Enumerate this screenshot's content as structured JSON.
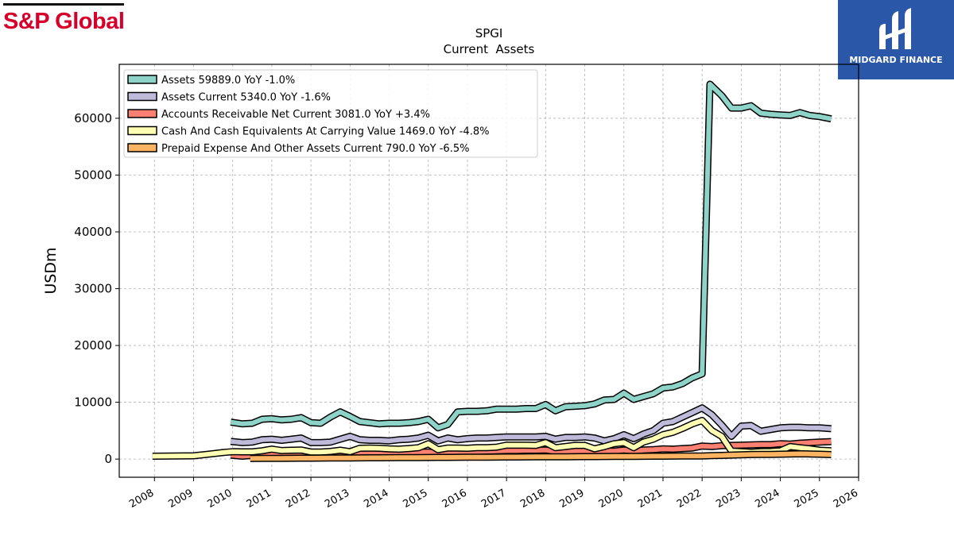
{
  "branding": {
    "left_logo_text": "S&P Global",
    "right_logo_text": "MIDGARD FINANCE",
    "right_logo_color": "#2b57a8",
    "left_logo_color": "#d6002a"
  },
  "chart_data": {
    "type": "line",
    "title": "SPGI",
    "subtitle": "Current  Assets",
    "xlabel": "",
    "ylabel": "USDm",
    "xlim": [
      2007.1,
      2026.0
    ],
    "ylim": [
      -3200,
      69500
    ],
    "x_ticks": [
      "2008",
      "2009",
      "2010",
      "2011",
      "2012",
      "2013",
      "2014",
      "2015",
      "2016",
      "2017",
      "2018",
      "2019",
      "2020",
      "2021",
      "2022",
      "2023",
      "2024",
      "2025",
      "2026"
    ],
    "y_ticks": [
      0,
      10000,
      20000,
      30000,
      40000,
      50000,
      60000
    ],
    "y_tick_labels": [
      "0",
      "10000",
      "20000",
      "30000",
      "40000",
      "50000",
      "60000"
    ],
    "grid": true,
    "legend_position": "top-left",
    "series": [
      {
        "name": "Assets  59889.0 YoY -1.0%",
        "color": "#8dd3c7",
        "x": [
          2009.95,
          2010.25,
          2010.5,
          2010.75,
          2011.0,
          2011.25,
          2011.5,
          2011.75,
          2012.0,
          2012.25,
          2012.5,
          2012.75,
          2013.0,
          2013.25,
          2013.5,
          2013.75,
          2014.0,
          2014.25,
          2014.5,
          2014.75,
          2015.0,
          2015.25,
          2015.5,
          2015.75,
          2016.0,
          2016.25,
          2016.5,
          2016.75,
          2017.0,
          2017.25,
          2017.5,
          2017.75,
          2018.0,
          2018.25,
          2018.5,
          2018.75,
          2019.0,
          2019.25,
          2019.5,
          2019.75,
          2020.0,
          2020.25,
          2020.5,
          2020.75,
          2021.0,
          2021.25,
          2021.5,
          2021.75,
          2022.0,
          2022.2,
          2022.5,
          2022.75,
          2023.0,
          2023.25,
          2023.5,
          2023.75,
          2024.0,
          2024.25,
          2024.5,
          2024.75,
          2025.0,
          2025.3
        ],
        "y": [
          6500,
          6200,
          6300,
          7000,
          7100,
          6900,
          7000,
          7300,
          6400,
          6300,
          7400,
          8300,
          7500,
          6600,
          6400,
          6200,
          6300,
          6300,
          6400,
          6600,
          7000,
          5500,
          6100,
          8300,
          8400,
          8400,
          8500,
          8800,
          8800,
          8800,
          8900,
          8900,
          9600,
          8500,
          9200,
          9300,
          9400,
          9700,
          10400,
          10500,
          11600,
          10500,
          11000,
          11500,
          12500,
          12700,
          13300,
          14300,
          15000,
          66000,
          64000,
          61800,
          61800,
          62200,
          60900,
          60700,
          60600,
          60500,
          61000,
          60500,
          60300,
          59889
        ]
      },
      {
        "name": "Assets Current  5340.0 YoY -1.6%",
        "color": "#bebada",
        "x": [
          2009.95,
          2010.25,
          2010.5,
          2010.75,
          2011.0,
          2011.25,
          2011.5,
          2011.75,
          2012.0,
          2012.25,
          2012.5,
          2012.75,
          2013.0,
          2013.25,
          2013.5,
          2013.75,
          2014.0,
          2014.25,
          2014.5,
          2014.75,
          2015.0,
          2015.25,
          2015.5,
          2015.75,
          2016.0,
          2016.25,
          2016.5,
          2016.75,
          2017.0,
          2017.25,
          2017.5,
          2017.75,
          2018.0,
          2018.25,
          2018.5,
          2018.75,
          2019.0,
          2019.25,
          2019.5,
          2019.75,
          2020.0,
          2020.25,
          2020.5,
          2020.75,
          2021.0,
          2021.25,
          2021.5,
          2021.75,
          2022.0,
          2022.25,
          2022.5,
          2022.75,
          2023.0,
          2023.25,
          2023.5,
          2023.75,
          2024.0,
          2024.25,
          2024.5,
          2024.75,
          2025.0,
          2025.3
        ],
        "y": [
          3100,
          2900,
          3000,
          3400,
          3500,
          3300,
          3500,
          3700,
          2900,
          2900,
          3000,
          3500,
          4000,
          3400,
          3300,
          3300,
          3200,
          3400,
          3500,
          3700,
          4200,
          3200,
          3700,
          3400,
          3600,
          3700,
          3700,
          3800,
          3900,
          3900,
          3900,
          3900,
          4000,
          3500,
          3800,
          3800,
          3900,
          3700,
          3200,
          3600,
          4300,
          3600,
          4400,
          5000,
          6300,
          6600,
          7400,
          8200,
          9000,
          7800,
          6000,
          4000,
          5800,
          5900,
          4900,
          5200,
          5500,
          5600,
          5600,
          5500,
          5500,
          5340
        ]
      },
      {
        "name": "Accounts Receivable Net Current  3081.0 YoY +3.4%",
        "color": "#fb8072",
        "x": [
          2009.95,
          2010.25,
          2010.5,
          2010.75,
          2011.0,
          2011.25,
          2011.5,
          2011.75,
          2012.0,
          2012.25,
          2012.5,
          2012.75,
          2013.0,
          2013.25,
          2013.5,
          2013.75,
          2014.0,
          2014.25,
          2014.5,
          2014.75,
          2015.0,
          2015.25,
          2015.5,
          2015.75,
          2016.0,
          2016.25,
          2016.5,
          2016.75,
          2017.0,
          2017.25,
          2017.5,
          2017.75,
          2018.0,
          2018.25,
          2018.5,
          2018.75,
          2019.0,
          2019.25,
          2019.5,
          2019.75,
          2020.0,
          2020.25,
          2020.5,
          2020.75,
          2021.0,
          2021.25,
          2021.5,
          2021.75,
          2022.0,
          2022.25,
          2022.5,
          2022.75,
          2023.0,
          2023.25,
          2023.5,
          2023.75,
          2024.0,
          2024.25,
          2024.5,
          2024.75,
          2025.0,
          2025.3
        ],
        "y": [
          700,
          500,
          650,
          800,
          900,
          800,
          850,
          900,
          700,
          750,
          850,
          950,
          600,
          1100,
          1050,
          1050,
          1050,
          1100,
          1150,
          1200,
          1250,
          1100,
          1200,
          1300,
          1300,
          1350,
          1400,
          1450,
          1500,
          1500,
          1550,
          1550,
          1600,
          1350,
          1400,
          1450,
          1500,
          1300,
          1400,
          1400,
          1600,
          1450,
          1600,
          1650,
          1800,
          1750,
          1850,
          1950,
          2300,
          2200,
          2350,
          2400,
          2450,
          2500,
          2550,
          2550,
          2700,
          2650,
          2800,
          2900,
          2980,
          3081
        ]
      },
      {
        "name": "Cash And Cash Equivalents At Carrying Value  1469.0 YoY -4.8%",
        "color": "#ffffb3",
        "x": [
          2007.95,
          2008.25,
          2008.5,
          2008.75,
          2009.0,
          2009.25,
          2009.5,
          2009.75,
          2010.0,
          2010.25,
          2010.5,
          2010.75,
          2011.0,
          2011.25,
          2011.5,
          2011.75,
          2012.0,
          2012.25,
          2012.5,
          2012.75,
          2013.0,
          2013.25,
          2013.5,
          2013.75,
          2014.0,
          2014.25,
          2014.5,
          2014.75,
          2015.0,
          2015.25,
          2015.5,
          2015.75,
          2016.0,
          2016.25,
          2016.5,
          2016.75,
          2017.0,
          2017.25,
          2017.5,
          2017.75,
          2018.0,
          2018.25,
          2018.5,
          2018.75,
          2019.0,
          2019.25,
          2019.5,
          2019.75,
          2020.0,
          2020.25,
          2020.5,
          2020.75,
          2021.0,
          2021.25,
          2021.5,
          2021.75,
          2022.0,
          2022.25,
          2022.5,
          2022.75,
          2023.0,
          2023.25,
          2023.5,
          2023.75,
          2024.0,
          2024.25,
          2024.5,
          2024.75,
          2025.0,
          2025.3
        ],
        "y": [
          500,
          520,
          540,
          560,
          580,
          760,
          950,
          1150,
          1300,
          1270,
          1270,
          1450,
          1750,
          1500,
          1550,
          1600,
          1250,
          1250,
          1350,
          1550,
          1300,
          1900,
          1950,
          1900,
          1800,
          1750,
          1850,
          2000,
          2700,
          1650,
          1950,
          1950,
          1900,
          2000,
          2000,
          2100,
          2450,
          2450,
          2450,
          2400,
          2900,
          2000,
          2200,
          2400,
          2400,
          1800,
          2200,
          2700,
          2900,
          2000,
          3000,
          3500,
          4300,
          4700,
          5400,
          6200,
          6800,
          5000,
          4000,
          1400,
          1300,
          1200,
          1300,
          1350,
          1450,
          2200,
          2000,
          1800,
          1550,
          1469
        ]
      },
      {
        "name": "Prepaid Expense And Other Assets Current  790.0 YoY -6.5%",
        "color": "#fdb462",
        "x": [
          2010.45,
          2010.75,
          2011.0,
          2011.25,
          2011.5,
          2011.75,
          2012.0,
          2012.25,
          2012.5,
          2012.75,
          2013.0,
          2013.25,
          2013.5,
          2013.75,
          2014.0,
          2014.25,
          2014.5,
          2014.75,
          2015.0,
          2015.25,
          2015.5,
          2015.75,
          2016.0,
          2016.25,
          2016.5,
          2016.75,
          2017.0,
          2017.25,
          2017.5,
          2017.75,
          2018.0,
          2018.25,
          2018.5,
          2018.75,
          2019.0,
          2019.25,
          2019.5,
          2019.75,
          2020.0,
          2020.25,
          2020.5,
          2020.75,
          2021.0,
          2021.25,
          2021.5,
          2021.75,
          2022.0,
          2022.25,
          2022.5,
          2022.75,
          2023.0,
          2023.25,
          2023.5,
          2023.75,
          2024.0,
          2024.25,
          2024.5,
          2024.75,
          2025.0,
          2025.3
        ],
        "y": [
          100,
          110,
          120,
          130,
          140,
          150,
          160,
          170,
          180,
          190,
          200,
          210,
          220,
          230,
          240,
          250,
          260,
          270,
          280,
          290,
          300,
          310,
          320,
          330,
          340,
          350,
          360,
          370,
          380,
          390,
          400,
          400,
          410,
          420,
          430,
          440,
          450,
          460,
          470,
          480,
          490,
          500,
          510,
          520,
          530,
          540,
          550,
          600,
          650,
          700,
          750,
          800,
          820,
          830,
          850,
          900,
          920,
          900,
          850,
          790
        ]
      }
    ]
  }
}
